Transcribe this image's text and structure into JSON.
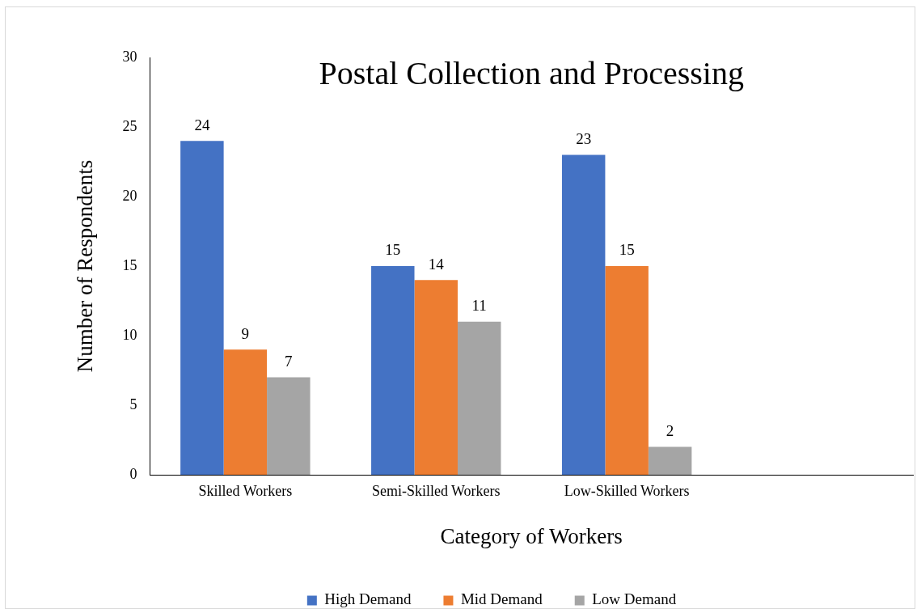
{
  "chart_data": {
    "type": "bar",
    "title": "Postal Collection and Processing",
    "xlabel": "Category of Workers",
    "ylabel": "Number of Respondents",
    "categories": [
      "Skilled Workers",
      "Semi-Skilled Workers",
      "Low-Skilled Workers",
      null
    ],
    "series": [
      {
        "name": "High Demand",
        "color": "#4472c4",
        "values": [
          24,
          15,
          23,
          null
        ]
      },
      {
        "name": "Mid Demand",
        "color": "#ed7d31",
        "values": [
          9,
          14,
          15,
          null
        ]
      },
      {
        "name": "Low Demand",
        "color": "#a5a5a5",
        "values": [
          7,
          11,
          2,
          null
        ]
      }
    ],
    "ylim": [
      0,
      30
    ],
    "yticks": [
      0,
      5,
      10,
      15,
      20,
      25,
      30
    ],
    "grid": false,
    "legend": "bottom",
    "data_labels": true
  }
}
